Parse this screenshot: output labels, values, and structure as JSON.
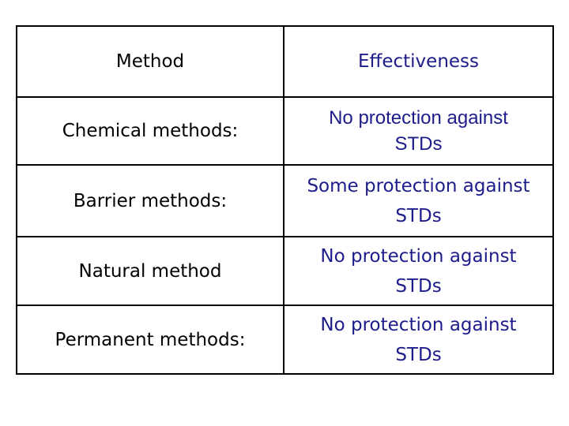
{
  "table": {
    "header": [
      "Method",
      "Effectiveness"
    ],
    "rows": [
      {
        "method": "Chemical methods:",
        "effectiveness": [
          "No protection against",
          "STDs"
        ]
      },
      {
        "method": "Barrier methods:",
        "effectiveness": [
          "Some protection against",
          "STDs"
        ]
      },
      {
        "method": "Natural method",
        "effectiveness": [
          "No protection against",
          "STDs"
        ]
      },
      {
        "method": "Permanent methods:",
        "effectiveness": [
          "No protection against",
          "STDs"
        ]
      }
    ]
  }
}
